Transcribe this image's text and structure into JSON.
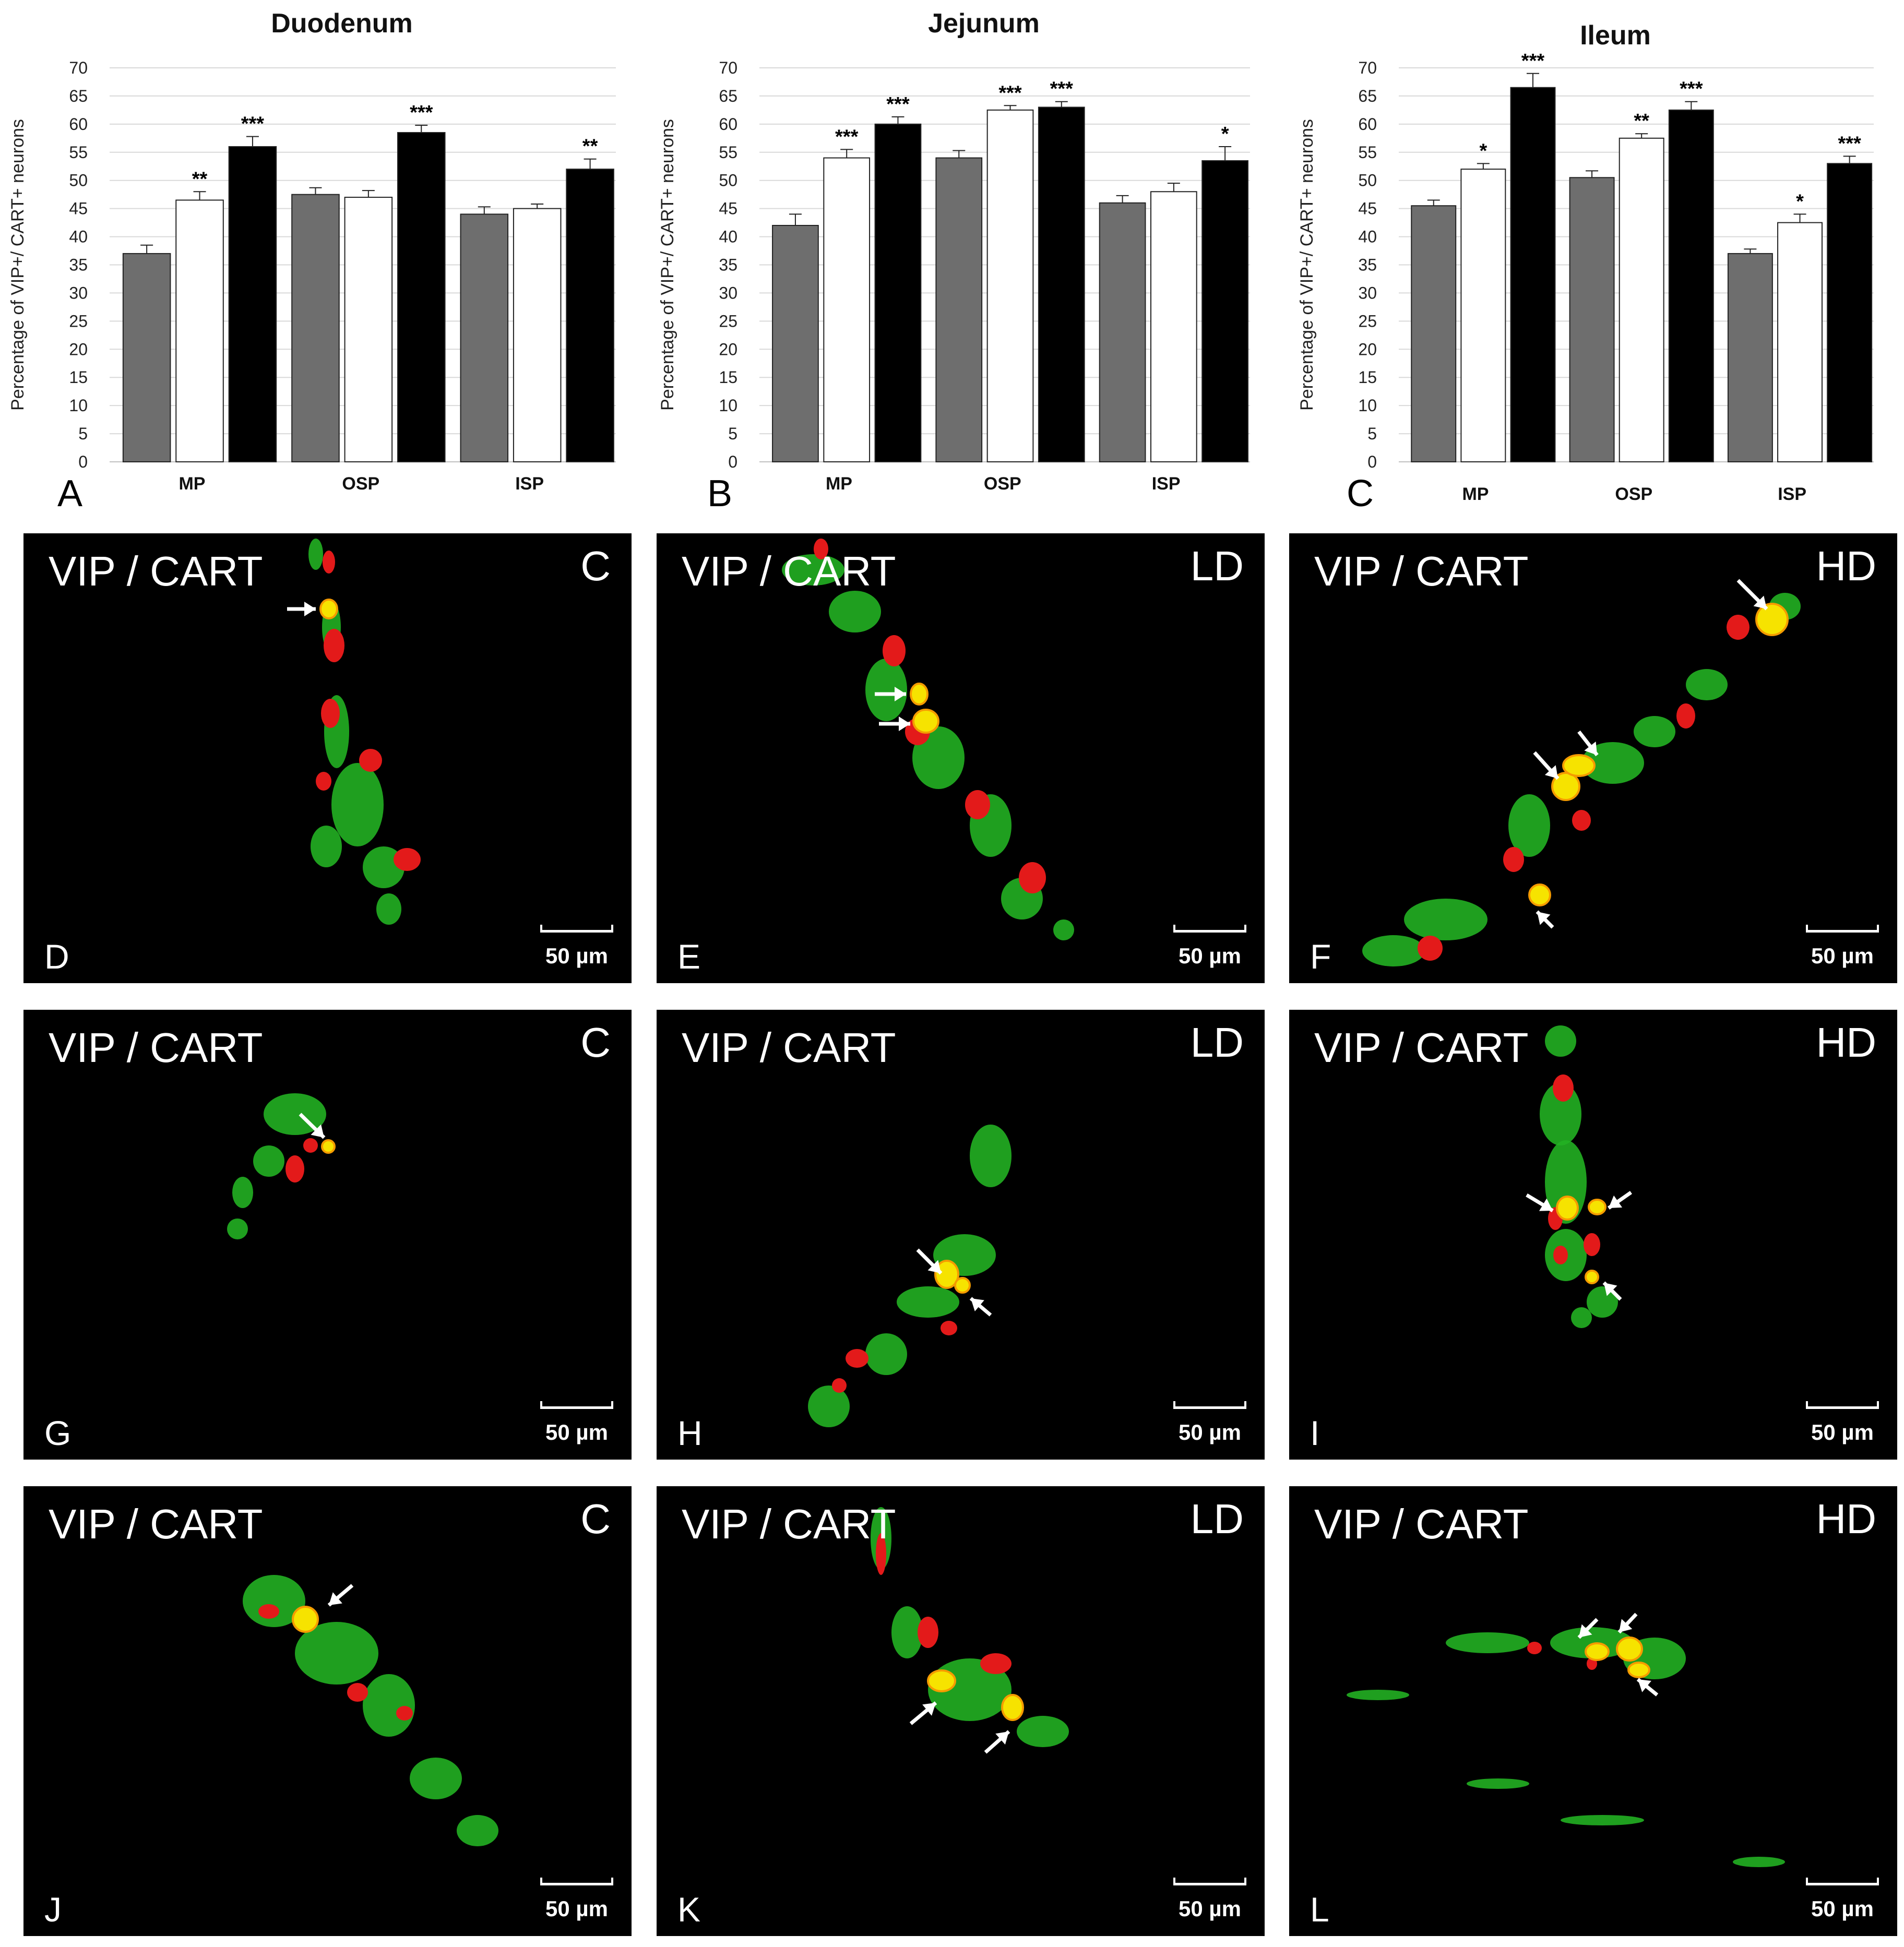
{
  "chart_data": [
    {
      "type": "bar",
      "panel_letter": "A",
      "title": "Duodenum",
      "ylabel": "Percentage of VIP+/ CART+ neurons",
      "categories": [
        "MP",
        "OSP",
        "ISP"
      ],
      "ylim": [
        0,
        70
      ],
      "yticks": [
        "0",
        "5",
        "10",
        "15",
        "20",
        "25",
        "30",
        "35",
        "40",
        "45",
        "50",
        "55",
        "60",
        "65",
        "70"
      ],
      "grid": true,
      "series_colors": [
        "#6e6e6e",
        "#ffffff",
        "#000000"
      ],
      "series": [
        {
          "values": [
            37,
            47.5,
            44
          ],
          "errors": [
            1.5,
            1.2,
            1.3
          ],
          "stars": [
            "",
            "",
            ""
          ]
        },
        {
          "values": [
            46.5,
            47,
            45
          ],
          "errors": [
            1.5,
            1.2,
            0.8
          ],
          "stars": [
            "**",
            "",
            ""
          ]
        },
        {
          "values": [
            56,
            58.5,
            52
          ],
          "errors": [
            1.8,
            1.3,
            1.8
          ],
          "stars": [
            "***",
            "***",
            "**"
          ]
        }
      ]
    },
    {
      "type": "bar",
      "panel_letter": "B",
      "title": "Jejunum",
      "ylabel": "Percentage of VIP+/ CART+ neurons",
      "categories": [
        "MP",
        "OSP",
        "ISP"
      ],
      "ylim": [
        0,
        70
      ],
      "yticks": [
        "0",
        "5",
        "10",
        "15",
        "20",
        "25",
        "30",
        "35",
        "40",
        "45",
        "50",
        "55",
        "60",
        "65",
        "70"
      ],
      "grid": true,
      "series_colors": [
        "#6e6e6e",
        "#ffffff",
        "#000000"
      ],
      "series": [
        {
          "values": [
            42,
            54,
            46
          ],
          "errors": [
            2,
            1.3,
            1.3
          ],
          "stars": [
            "",
            "",
            ""
          ]
        },
        {
          "values": [
            54,
            62.5,
            48
          ],
          "errors": [
            1.5,
            0.8,
            1.5
          ],
          "stars": [
            "***",
            "***",
            ""
          ]
        },
        {
          "values": [
            60,
            63,
            53.5
          ],
          "errors": [
            1.3,
            1.0,
            2.5
          ],
          "stars": [
            "***",
            "***",
            "*"
          ]
        }
      ]
    },
    {
      "type": "bar",
      "panel_letter": "C",
      "title": "Ileum",
      "ylabel": "Percentage of VIP+/ CART+ neurons",
      "categories": [
        "MP",
        "OSP",
        "ISP"
      ],
      "ylim": [
        0,
        70
      ],
      "yticks": [
        "0",
        "5",
        "10",
        "15",
        "20",
        "25",
        "30",
        "35",
        "40",
        "45",
        "50",
        "55",
        "60",
        "65",
        "70"
      ],
      "grid": true,
      "series_colors": [
        "#6e6e6e",
        "#ffffff",
        "#000000"
      ],
      "series": [
        {
          "values": [
            45.5,
            50.5,
            37
          ],
          "errors": [
            1.0,
            1.2,
            0.8
          ],
          "stars": [
            "",
            "",
            ""
          ]
        },
        {
          "values": [
            52,
            57.5,
            42.5
          ],
          "errors": [
            1.0,
            0.8,
            1.5
          ],
          "stars": [
            "*",
            "**",
            "*"
          ]
        },
        {
          "values": [
            66.5,
            62.5,
            53
          ],
          "errors": [
            2.5,
            1.5,
            1.3
          ],
          "stars": [
            "***",
            "***",
            "***"
          ]
        }
      ]
    }
  ],
  "micrographs": [
    {
      "letter": "D",
      "label": "VIP / CART",
      "group": "C",
      "scale": "50 µm"
    },
    {
      "letter": "E",
      "label": "VIP / CART",
      "group": "LD",
      "scale": "50 µm"
    },
    {
      "letter": "F",
      "label": "VIP / CART",
      "group": "HD",
      "scale": "50 µm"
    },
    {
      "letter": "G",
      "label": "VIP / CART",
      "group": "C",
      "scale": "50 µm"
    },
    {
      "letter": "H",
      "label": "VIP / CART",
      "group": "LD",
      "scale": "50 µm"
    },
    {
      "letter": "I",
      "label": "VIP / CART",
      "group": "HD",
      "scale": "50 µm"
    },
    {
      "letter": "J",
      "label": "VIP / CART",
      "group": "C",
      "scale": "50 µm"
    },
    {
      "letter": "K",
      "label": "VIP / CART",
      "group": "LD",
      "scale": "50 µm"
    },
    {
      "letter": "L",
      "label": "VIP / CART",
      "group": "HD",
      "scale": "50 µm"
    }
  ]
}
